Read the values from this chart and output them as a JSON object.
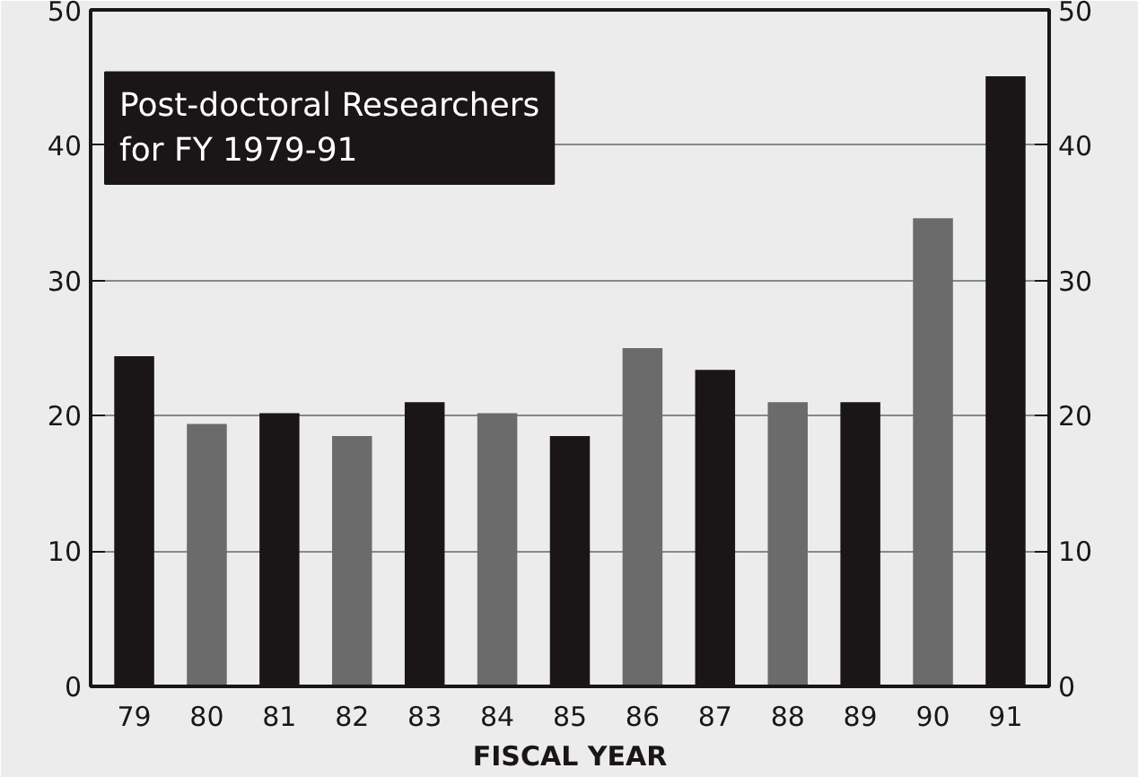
{
  "chart_data": {
    "type": "bar",
    "title": "Post-doctoral Researchers\nfor FY 1979-91",
    "xlabel": "FISCAL YEAR",
    "categories": [
      "79",
      "80",
      "81",
      "82",
      "83",
      "84",
      "85",
      "86",
      "87",
      "88",
      "89",
      "90",
      "91"
    ],
    "values": [
      24.4,
      19.4,
      20.2,
      18.5,
      21.0,
      20.2,
      18.5,
      25.0,
      23.4,
      21.0,
      21.0,
      34.6,
      45.1
    ],
    "colors": [
      "#1a1617",
      "#6b6b6b",
      "#1a1617",
      "#6b6b6b",
      "#1a1617",
      "#6b6b6b",
      "#1a1617",
      "#6b6b6b",
      "#1a1617",
      "#6b6b6b",
      "#1a1617",
      "#6b6b6b",
      "#1a1617"
    ],
    "ylim": [
      0,
      50
    ],
    "yticks": [
      0,
      10,
      20,
      30,
      40,
      50
    ],
    "y2lim": [
      0,
      50
    ],
    "y2ticks": [
      0,
      10,
      20,
      30,
      40,
      50
    ],
    "grid": "y"
  }
}
